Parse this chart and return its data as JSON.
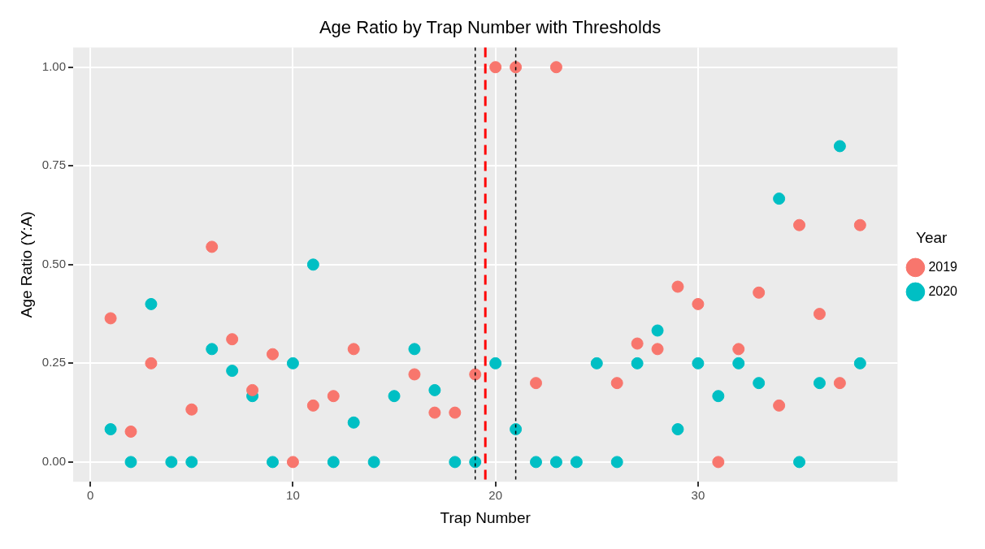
{
  "chart_data": {
    "type": "scatter",
    "title": "Age Ratio by Trap Number with Thresholds",
    "xlabel": "Trap Number",
    "ylabel": "Age Ratio (Y:A)",
    "legend_title": "Year",
    "legend": "right",
    "grid": true,
    "marker": "circle",
    "xlim": [
      -0.85,
      39.85
    ],
    "xticks": [
      0,
      10,
      20,
      30
    ],
    "ylim": [
      -0.05,
      1.05
    ],
    "yticks": [
      {
        "value": 0,
        "label": "0.00"
      },
      {
        "value": 0.25,
        "label": "0.25"
      },
      {
        "value": 0.5,
        "label": "0.50"
      },
      {
        "value": 0.75,
        "label": "0.75"
      },
      {
        "value": 1,
        "label": "1.00"
      }
    ],
    "series": [
      {
        "name": "2019",
        "color": "#f8766d",
        "x": [
          1,
          2,
          3,
          5,
          6,
          7,
          8,
          9,
          10,
          11,
          12,
          13,
          16,
          17,
          18,
          19,
          20,
          21,
          22,
          23,
          26,
          27,
          28,
          29,
          30,
          31,
          32,
          33,
          34,
          35,
          36,
          37,
          38
        ],
        "values": [
          0.364,
          0.077,
          0.25,
          0.133,
          0.545,
          0.311,
          0.182,
          0.273,
          0,
          0.143,
          0.167,
          0.286,
          0.222,
          0.125,
          0.125,
          0.222,
          1,
          1,
          0.2,
          1,
          0.2,
          0.3,
          0.286,
          0.444,
          0.4,
          0,
          0.286,
          0.429,
          0.143,
          0.6,
          0.375,
          0.2,
          0.6
        ]
      },
      {
        "name": "2020",
        "color": "#00bfc4",
        "x": [
          1,
          2,
          3,
          4,
          5,
          6,
          7,
          8,
          9,
          10,
          11,
          12,
          13,
          14,
          15,
          16,
          17,
          18,
          19,
          20,
          21,
          22,
          23,
          24,
          25,
          26,
          27,
          28,
          29,
          30,
          31,
          32,
          33,
          34,
          35,
          36,
          37,
          38
        ],
        "values": [
          0.083,
          0,
          0.4,
          0,
          0,
          0.286,
          0.231,
          0.167,
          0,
          0.25,
          0.5,
          0,
          0.1,
          0,
          0.167,
          0.286,
          0.182,
          0,
          0,
          0.25,
          0.083,
          0,
          0,
          0,
          0.25,
          0,
          0.25,
          0.333,
          0.083,
          0.25,
          0.167,
          0.25,
          0.2,
          0.667,
          0,
          0.2,
          0.8,
          0.25
        ]
      }
    ],
    "ref_lines": [
      {
        "axis": "x",
        "value": 19,
        "color": "#000000",
        "line_style": "dotted"
      },
      {
        "axis": "x",
        "value": 21,
        "color": "#000000",
        "line_style": "dotted"
      },
      {
        "axis": "x",
        "value": 19.5,
        "color": "#ff0000",
        "line_style": "dashed"
      }
    ]
  }
}
